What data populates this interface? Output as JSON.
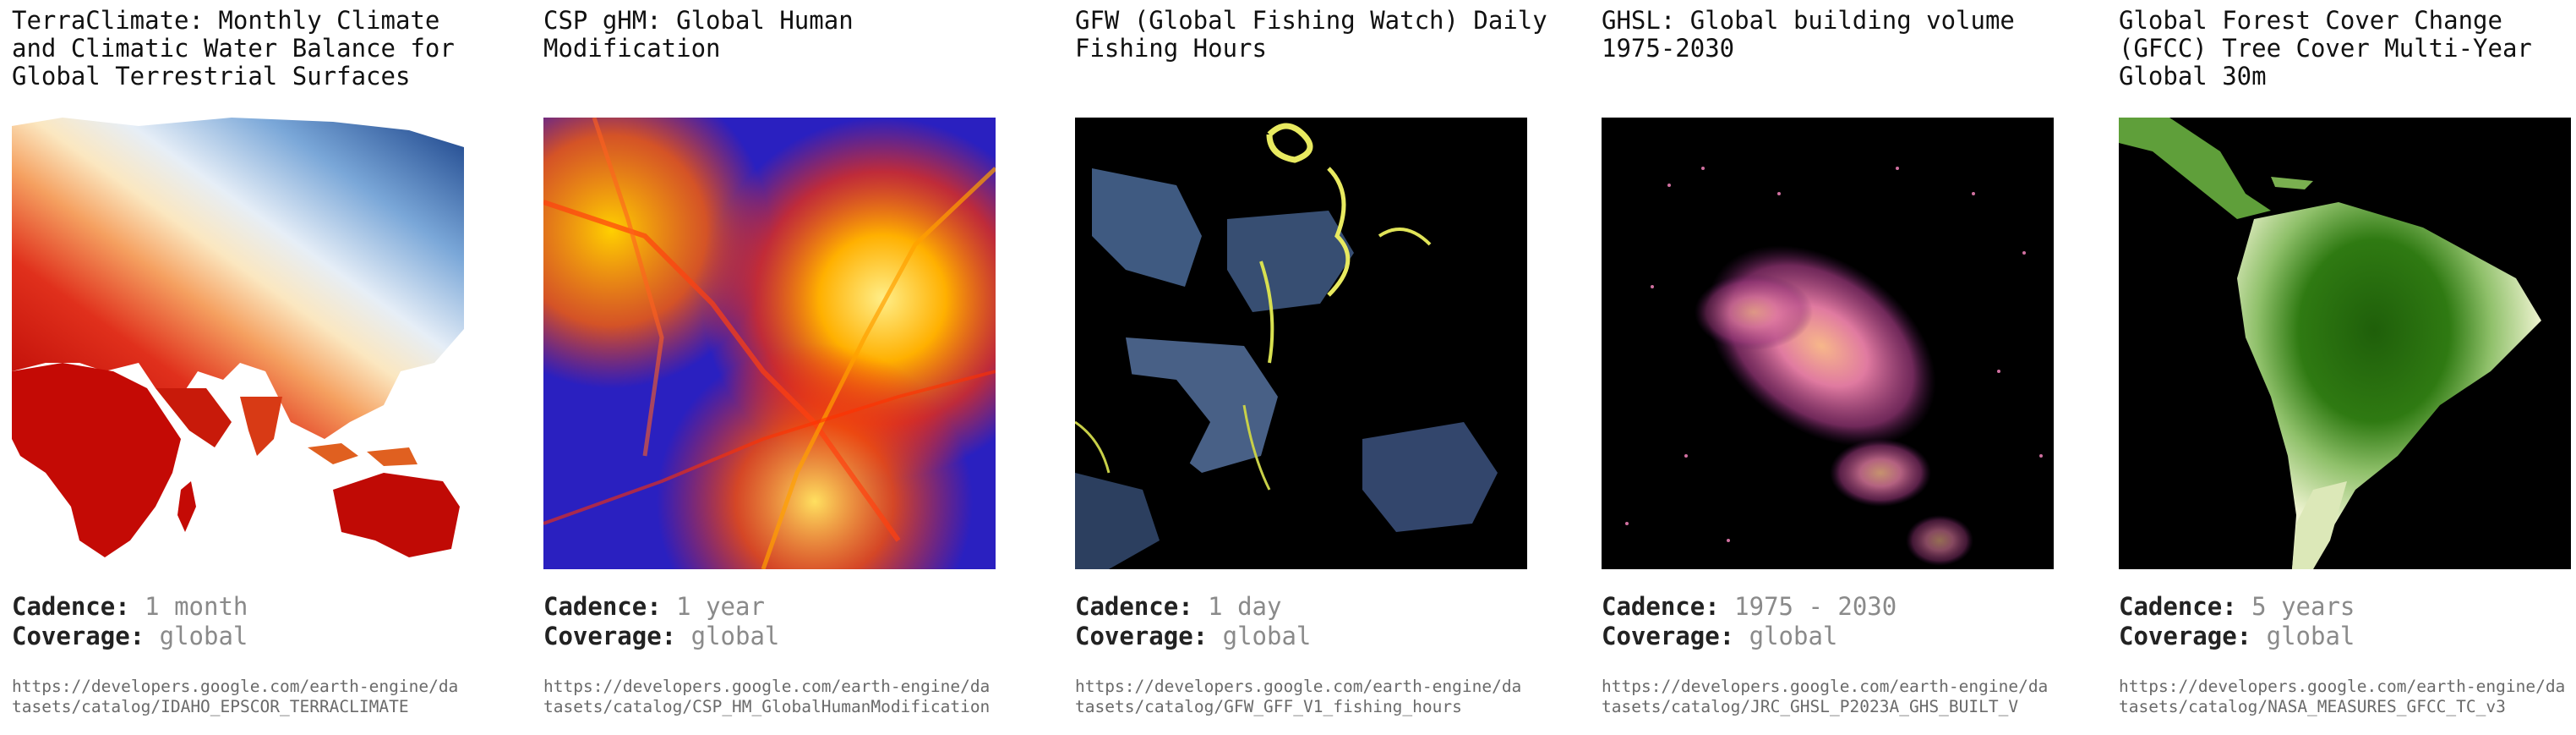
{
  "datasets": [
    {
      "title": "TerraClimate: Monthly Climate and Climatic Water Balance for Global Terrestrial Surfaces",
      "cadence_label": "Cadence:",
      "cadence": "1 month",
      "coverage_label": "Coverage:",
      "coverage": "global",
      "url": "https://developers.google.com/earth-engine/datasets/catalog/IDAHO_EPSCOR_TERRACLIMATE"
    },
    {
      "title": "CSP gHM: Global Human Modification",
      "cadence_label": "Cadence:",
      "cadence": "1 year",
      "coverage_label": "Coverage:",
      "coverage": "global",
      "url": "https://developers.google.com/earth-engine/datasets/catalog/CSP_HM_GlobalHumanModification"
    },
    {
      "title": "GFW (Global Fishing Watch) Daily Fishing Hours",
      "cadence_label": "Cadence:",
      "cadence": "1 day",
      "coverage_label": "Coverage:",
      "coverage": "global",
      "url": "https://developers.google.com/earth-engine/datasets/catalog/GFW_GFF_V1_fishing_hours"
    },
    {
      "title": "GHSL: Global building volume 1975-2030",
      "cadence_label": "Cadence:",
      "cadence": "1975 - 2030",
      "coverage_label": "Coverage:",
      "coverage": "global",
      "url": "https://developers.google.com/earth-engine/datasets/catalog/JRC_GHSL_P2023A_GHS_BUILT_V"
    },
    {
      "title": "Global Forest Cover Change (GFCC) Tree Cover Multi-Year Global 30m",
      "cadence_label": "Cadence:",
      "cadence": "5 years",
      "coverage_label": "Coverage:",
      "coverage": "global",
      "url": "https://developers.google.com/earth-engine/datasets/catalog/NASA_MEASURES_GFCC_TC_v3"
    }
  ],
  "thumbnails": [
    {
      "icon": "terraclimate-map-thumbnail",
      "colors": [
        "#c00000",
        "#f4b070",
        "#e7f0f8",
        "#1e4f9a"
      ]
    },
    {
      "icon": "human-modification-map-thumbnail",
      "colors": [
        "#2a20c0",
        "#ff3000",
        "#ffd000",
        "#ffee88"
      ]
    },
    {
      "icon": "fishing-hours-map-thumbnail",
      "colors": [
        "#000000",
        "#5a78a8",
        "#e8ea60"
      ]
    },
    {
      "icon": "building-volume-map-thumbnail",
      "colors": [
        "#000000",
        "#c04a8a",
        "#f7b78a"
      ]
    },
    {
      "icon": "forest-cover-map-thumbnail",
      "colors": [
        "#1f5f0a",
        "#8fc06a",
        "#eef3d0"
      ]
    }
  ]
}
